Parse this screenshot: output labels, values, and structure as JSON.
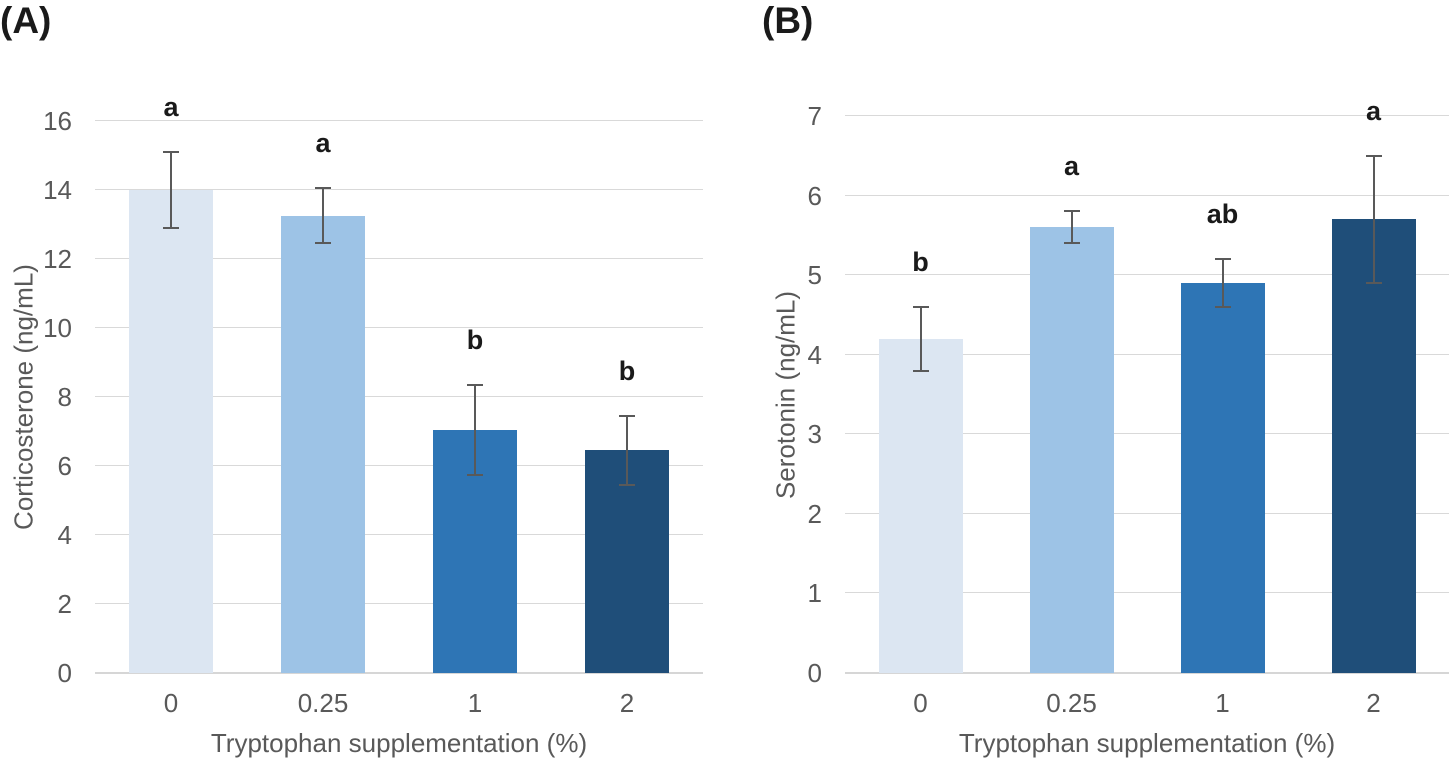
{
  "figure_type": "two-panel scientific bar chart",
  "colors": {
    "background": "#ffffff",
    "bar_palette": [
      "#dce6f2",
      "#9dc3e6",
      "#2e75b5",
      "#1f4e79"
    ],
    "gridline": "#d9d9d9",
    "baseline": "#d6d6d6",
    "axis_text": "#595959",
    "error_bar": "#595959",
    "sig_letter": "#1a1a1a"
  },
  "chart_data": [
    {
      "type": "bar",
      "panel_label": "(A)",
      "categories": [
        "0",
        "0.25",
        "1",
        "2"
      ],
      "values": [
        14.0,
        13.25,
        7.05,
        6.45
      ],
      "errors": [
        1.1,
        0.8,
        1.3,
        1.0
      ],
      "sig_letters": [
        "a",
        "a",
        "b",
        "b"
      ],
      "xlabel": "Tryptophan supplementation (%)",
      "ylabel": "Corticosterone (ng/mL)",
      "ylim": [
        0,
        16
      ],
      "ytick_step": 2,
      "grid": true,
      "legend": null,
      "error_bars": "symmetric, capped"
    },
    {
      "type": "bar",
      "panel_label": "(B)",
      "categories": [
        "0",
        "0.25",
        "1",
        "2"
      ],
      "values": [
        4.2,
        5.6,
        4.9,
        5.7
      ],
      "errors": [
        0.4,
        0.2,
        0.3,
        0.8
      ],
      "sig_letters": [
        "b",
        "a",
        "ab",
        "a"
      ],
      "xlabel": "Tryptophan supplementation (%)",
      "ylabel": "Serotonin (ng/mL)",
      "ylim": [
        0,
        7
      ],
      "ytick_step": 1,
      "grid": true,
      "legend": null,
      "error_bars": "symmetric, capped"
    }
  ]
}
